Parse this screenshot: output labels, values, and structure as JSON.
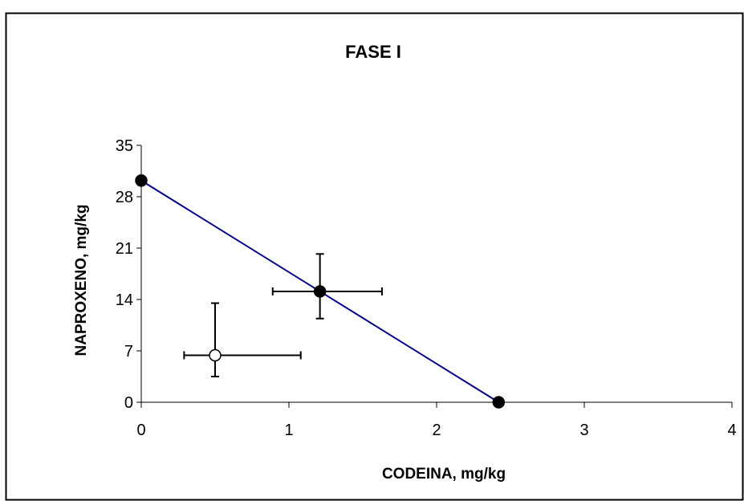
{
  "chart_data": {
    "type": "scatter",
    "title": "FASE I",
    "xlabel": "CODEINA, mg/kg",
    "ylabel": "NAPROXENO, mg/kg",
    "xlim": [
      0,
      4
    ],
    "ylim": [
      0,
      35
    ],
    "xticks": [
      0,
      1,
      2,
      3,
      4
    ],
    "yticks": [
      0,
      7,
      14,
      21,
      28,
      35
    ],
    "grid": false,
    "legend": "none",
    "line": {
      "color": "#00008b",
      "points": [
        {
          "x": 0,
          "y": 30.2
        },
        {
          "x": 2.42,
          "y": 0
        }
      ]
    },
    "points": [
      {
        "x": 0,
        "y": 30.2,
        "filled": true
      },
      {
        "x": 1.21,
        "y": 15.1,
        "filled": true,
        "xerr": [
          0.89,
          1.63
        ],
        "yerr": [
          11.4,
          20.2
        ]
      },
      {
        "x": 2.42,
        "y": 0,
        "filled": true
      },
      {
        "x": 0.5,
        "y": 6.4,
        "filled": false,
        "xerr": [
          0.29,
          1.08
        ],
        "yerr": [
          3.5,
          13.5
        ]
      }
    ],
    "colors": {
      "line": "#00008b",
      "marker": "#000000",
      "open_marker_fill": "#ffffff",
      "frame": "#000000"
    }
  }
}
